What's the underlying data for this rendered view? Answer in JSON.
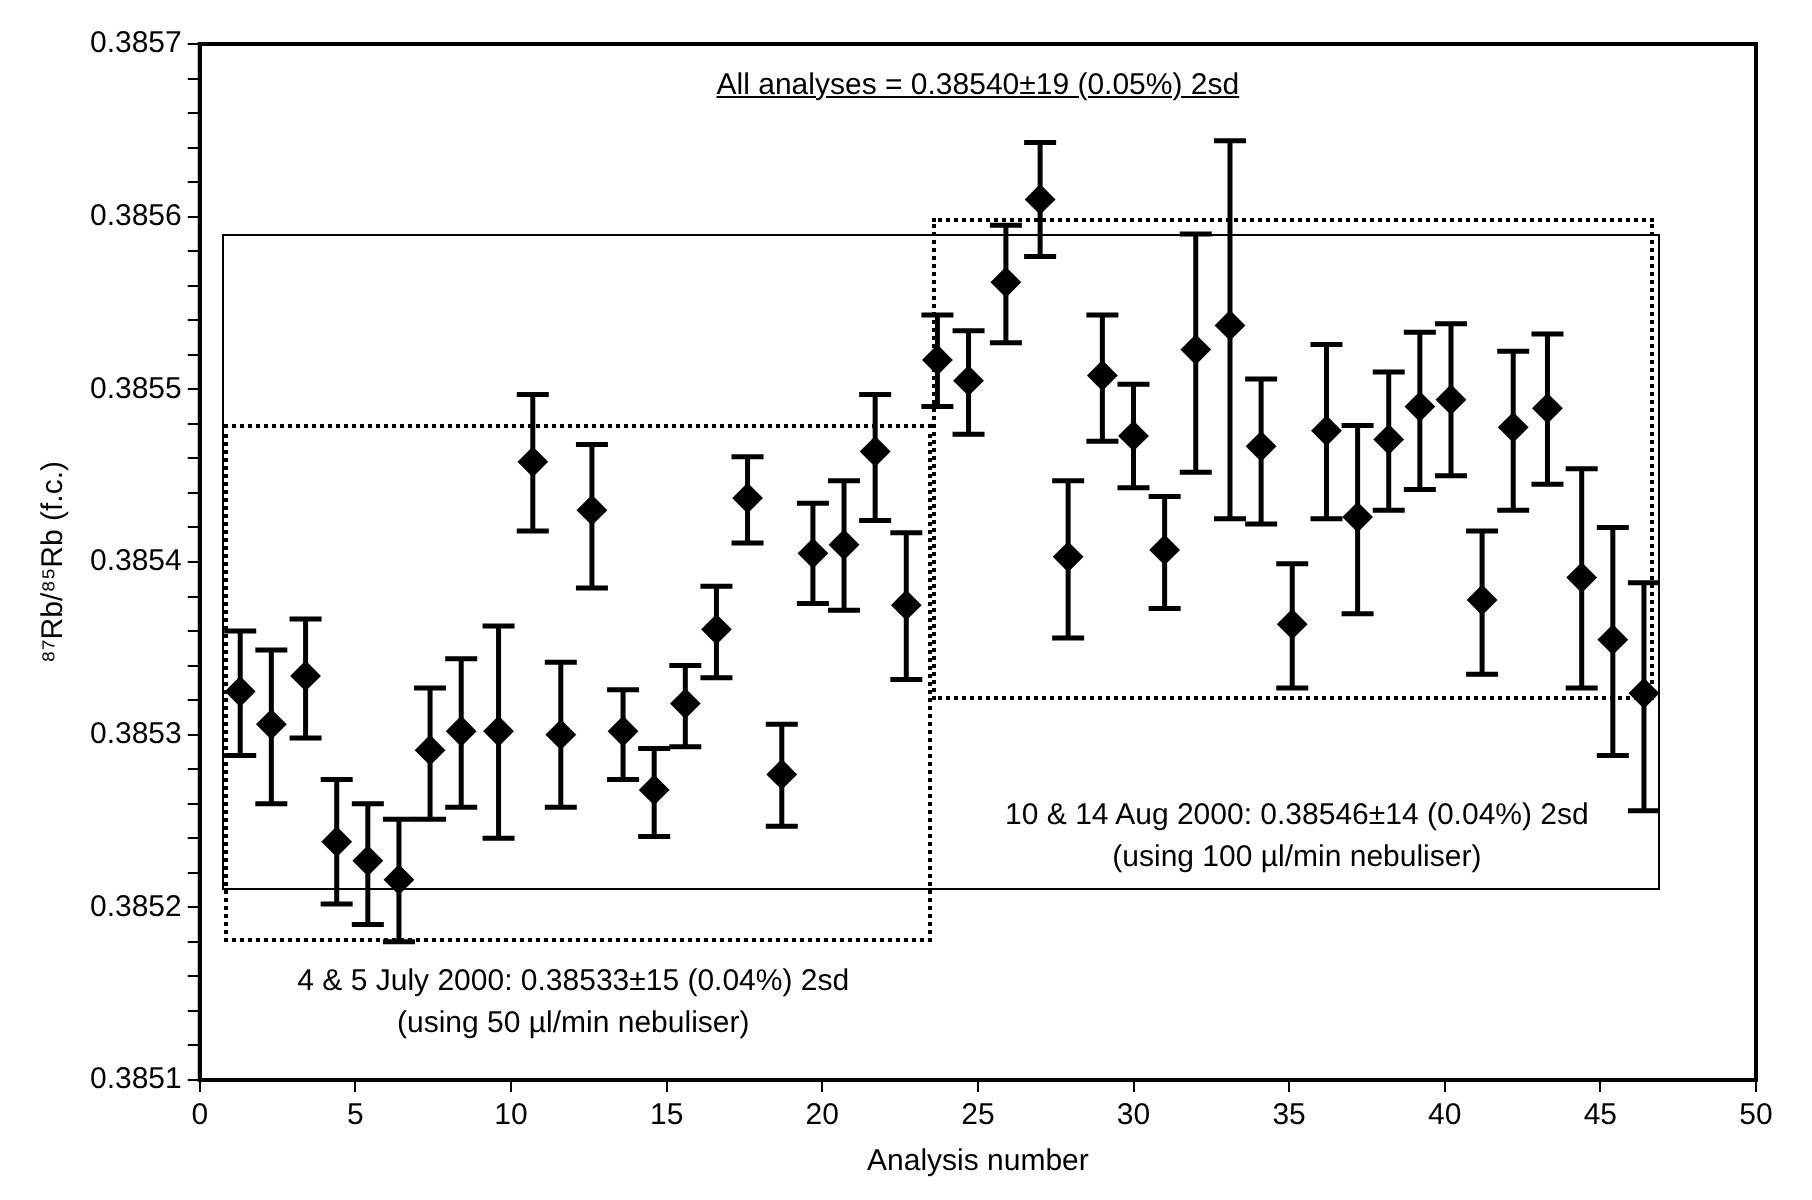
{
  "chart_data": {
    "type": "scatter",
    "xlabel": "Analysis number",
    "ylabel": "⁸⁷Rb/⁸⁵Rb (f.c.)",
    "xlim": [
      0,
      50
    ],
    "xticks": [
      0,
      5,
      10,
      15,
      20,
      25,
      30,
      35,
      40,
      45,
      50
    ],
    "ylim": [
      0.3851,
      0.3857
    ],
    "yticks": [
      0.3851,
      {
        "value": 0.38512,
        "label": null
      },
      {
        "value": 0.38514,
        "label": null
      },
      {
        "value": 0.38516,
        "label": null
      },
      {
        "value": 0.38518,
        "label": null
      },
      0.3852,
      {
        "value": 0.38522,
        "label": null
      },
      {
        "value": 0.38524,
        "label": null
      },
      {
        "value": 0.38526,
        "label": null
      },
      {
        "value": 0.38528,
        "label": null
      },
      0.3853,
      {
        "value": 0.38532,
        "label": null
      },
      {
        "value": 0.38534,
        "label": null
      },
      {
        "value": 0.38536,
        "label": null
      },
      {
        "value": 0.38538,
        "label": null
      },
      0.3854,
      {
        "value": 0.38542,
        "label": null
      },
      {
        "value": 0.38544,
        "label": null
      },
      {
        "value": 0.38546,
        "label": null
      },
      {
        "value": 0.38548,
        "label": null
      },
      0.3855,
      {
        "value": 0.38552,
        "label": null
      },
      {
        "value": 0.38554,
        "label": null
      },
      {
        "value": 0.38556,
        "label": null
      },
      {
        "value": 0.38558,
        "label": null
      },
      0.3856,
      {
        "value": 0.38562,
        "label": null
      },
      {
        "value": 0.38564,
        "label": null
      },
      {
        "value": 0.38566,
        "label": null
      },
      {
        "value": 0.38568,
        "label": null
      },
      0.3857
    ],
    "grid": false,
    "legend": false,
    "marker": "diamond",
    "series": [
      {
        "type": "scatter",
        "color": "#000000",
        "x": [
          1.3,
          2.3,
          3.4,
          4.4,
          5.4,
          6.4,
          7.4,
          8.4,
          9.6,
          10.7,
          11.6,
          12.6,
          13.6,
          14.6,
          15.6,
          16.6,
          17.6,
          18.7,
          19.7,
          20.7,
          21.7,
          22.7,
          23.7,
          24.7,
          25.9,
          27.0,
          27.9,
          29.0,
          30.0,
          31.0,
          32.0,
          33.1,
          34.1,
          35.1,
          36.2,
          37.2,
          38.2,
          39.2,
          40.2,
          41.2,
          42.2,
          43.3,
          44.4,
          45.4,
          46.4
        ],
        "values": [
          0.385325,
          0.385306,
          0.385334,
          0.385238,
          0.385227,
          0.385216,
          0.385291,
          0.385302,
          0.385302,
          0.385458,
          0.3853,
          0.38543,
          0.385302,
          0.385268,
          0.385318,
          0.385361,
          0.385437,
          0.385277,
          0.385405,
          0.38541,
          0.385464,
          0.385375,
          0.385517,
          0.385505,
          0.385562,
          0.38561,
          0.385403,
          0.385508,
          0.385473,
          0.385407,
          0.385523,
          0.385537,
          0.385467,
          0.385364,
          0.385476,
          0.385426,
          0.385471,
          0.38549,
          0.385494,
          0.385378,
          0.385478,
          0.385489,
          0.385391,
          0.385355,
          0.385324
        ],
        "errors": [
          [
            0.385288,
            0.38536
          ],
          [
            0.38526,
            0.385349
          ],
          [
            0.385298,
            0.385367
          ],
          [
            0.385202,
            0.385274
          ],
          [
            0.38519,
            0.38526
          ],
          [
            0.38518,
            0.385251
          ],
          [
            0.385251,
            0.385327
          ],
          [
            0.385258,
            0.385344
          ],
          [
            0.38524,
            0.385363
          ],
          [
            0.385418,
            0.385497
          ],
          [
            0.385258,
            0.385342
          ],
          [
            0.385385,
            0.385468
          ],
          [
            0.385274,
            0.385326
          ],
          [
            0.385241,
            0.385292
          ],
          [
            0.385293,
            0.38534
          ],
          [
            0.385333,
            0.385386
          ],
          [
            0.385411,
            0.385461
          ],
          [
            0.385247,
            0.385306
          ],
          [
            0.385376,
            0.385434
          ],
          [
            0.385372,
            0.385447
          ],
          [
            0.385424,
            0.385497
          ],
          [
            0.385332,
            0.385417
          ],
          [
            0.38549,
            0.385543
          ],
          [
            0.385474,
            0.385534
          ],
          [
            0.385527,
            0.385595
          ],
          [
            0.385577,
            0.385643
          ],
          [
            0.385356,
            0.385447
          ],
          [
            0.38547,
            0.385543
          ],
          [
            0.385443,
            0.385503
          ],
          [
            0.385373,
            0.385438
          ],
          [
            0.385452,
            0.38559
          ],
          [
            0.385425,
            0.385644
          ],
          [
            0.385422,
            0.385506
          ],
          [
            0.385327,
            0.385399
          ],
          [
            0.385425,
            0.385526
          ],
          [
            0.38537,
            0.385479
          ],
          [
            0.38543,
            0.38551
          ],
          [
            0.385442,
            0.385533
          ],
          [
            0.38545,
            0.385538
          ],
          [
            0.385335,
            0.385418
          ],
          [
            0.38543,
            0.385522
          ],
          [
            0.385445,
            0.385532
          ],
          [
            0.385327,
            0.385454
          ],
          [
            0.385288,
            0.38542
          ],
          [
            0.385256,
            0.385388
          ]
        ]
      }
    ],
    "annotations": [
      "All analyses = 0.38540±19 (0.05%) 2sd",
      "4 & 5 July 2000: 0.38533±15 (0.04%) 2sd",
      "(using 50 µl/min nebuliser)",
      "10 & 14 Aug 2000: 0.38546±14 (0.04%) 2sd",
      "(using 100 µl/min nebuliser)"
    ]
  }
}
